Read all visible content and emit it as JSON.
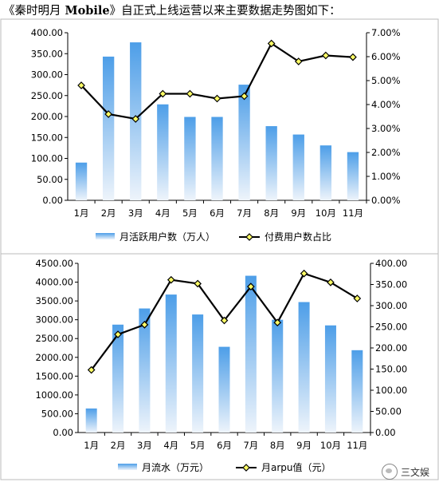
{
  "intro": {
    "prefix": "《秦时明月",
    "bold": " Mobile",
    "suffix": "》自正式上线运营以来主要数据走势图如下："
  },
  "watermark": {
    "text": "三文娱",
    "icon": "wechat-channel-icon"
  },
  "colors": {
    "bar_top": "#4d9ee8",
    "bar_bottom": "#eef4fb",
    "line": "#000000",
    "marker": "#ffff66",
    "axis": "#000000",
    "frame": "#bbbbbb"
  },
  "chart_data": [
    {
      "type": "bar",
      "categories": [
        "1月",
        "2月",
        "3月",
        "4月",
        "5月",
        "6月",
        "7月",
        "8月",
        "9月",
        "10月",
        "11月"
      ],
      "series": [
        {
          "name": "月活跃用户数（万人）",
          "kind": "bar",
          "axis": "left",
          "values": [
            90,
            343,
            377,
            229,
            199,
            199,
            276,
            177,
            157,
            131,
            115
          ]
        },
        {
          "name": "付费用户数占比",
          "kind": "line",
          "axis": "right",
          "values": [
            4.8,
            3.6,
            3.4,
            4.45,
            4.45,
            4.25,
            4.35,
            6.55,
            5.8,
            6.05,
            5.98
          ]
        }
      ],
      "left_axis": {
        "ylim": [
          0,
          400
        ],
        "ticks": [
          "0.00",
          "50.00",
          "100.00",
          "150.00",
          "200.00",
          "250.00",
          "300.00",
          "350.00",
          "400.00"
        ]
      },
      "right_axis": {
        "ylim": [
          0,
          7
        ],
        "ticks": [
          "0.00%",
          "1.00%",
          "2.00%",
          "3.00%",
          "4.00%",
          "5.00%",
          "6.00%",
          "7.00%"
        ]
      },
      "legend": [
        "月活跃用户数（万人）",
        "付费用户数占比"
      ],
      "legend_position": "bottom",
      "grid": false
    },
    {
      "type": "bar",
      "categories": [
        "1月",
        "2月",
        "3月",
        "4月",
        "5月",
        "6月",
        "7月",
        "8月",
        "9月",
        "10月",
        "11月"
      ],
      "series": [
        {
          "name": "月流水（万元）",
          "kind": "bar",
          "axis": "left",
          "values": [
            640,
            2870,
            3300,
            3670,
            3140,
            2280,
            4170,
            3000,
            3470,
            2850,
            2190
          ]
        },
        {
          "name": "月arpu值（元）",
          "kind": "line",
          "axis": "right",
          "values": [
            148,
            232,
            255,
            361,
            352,
            265,
            345,
            260,
            376,
            355,
            317
          ]
        }
      ],
      "left_axis": {
        "ylim": [
          0,
          4500
        ],
        "ticks": [
          "0.00",
          "500.00",
          "1000.00",
          "1500.00",
          "2000.00",
          "2500.00",
          "3000.00",
          "3500.00",
          "4000.00",
          "4500.00"
        ]
      },
      "right_axis": {
        "ylim": [
          0,
          400
        ],
        "ticks": [
          "0.00",
          "50.00",
          "100.00",
          "150.00",
          "200.00",
          "250.00",
          "300.00",
          "350.00",
          "400.00"
        ]
      },
      "legend": [
        "月流水（万元）",
        "月arpu值（元）"
      ],
      "legend_position": "bottom",
      "grid": false
    }
  ]
}
